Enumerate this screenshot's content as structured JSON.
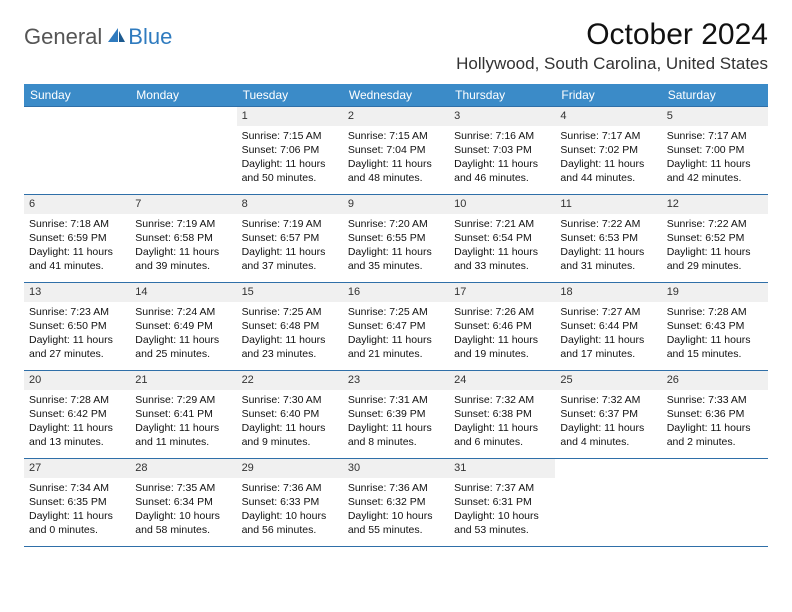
{
  "brand": {
    "general": "General",
    "blue": "Blue"
  },
  "title": "October 2024",
  "location": "Hollywood, South Carolina, United States",
  "colors": {
    "header_bg": "#3b8bc8",
    "header_text": "#ffffff",
    "border": "#2f6fa8",
    "daynum_bg": "#f0f0f0",
    "brand_blue": "#2f7bbf"
  },
  "weekdays": [
    "Sunday",
    "Monday",
    "Tuesday",
    "Wednesday",
    "Thursday",
    "Friday",
    "Saturday"
  ],
  "weeks": [
    [
      null,
      null,
      {
        "n": "1",
        "sunrise": "7:15 AM",
        "sunset": "7:06 PM",
        "daylight": "11 hours and 50 minutes."
      },
      {
        "n": "2",
        "sunrise": "7:15 AM",
        "sunset": "7:04 PM",
        "daylight": "11 hours and 48 minutes."
      },
      {
        "n": "3",
        "sunrise": "7:16 AM",
        "sunset": "7:03 PM",
        "daylight": "11 hours and 46 minutes."
      },
      {
        "n": "4",
        "sunrise": "7:17 AM",
        "sunset": "7:02 PM",
        "daylight": "11 hours and 44 minutes."
      },
      {
        "n": "5",
        "sunrise": "7:17 AM",
        "sunset": "7:00 PM",
        "daylight": "11 hours and 42 minutes."
      }
    ],
    [
      {
        "n": "6",
        "sunrise": "7:18 AM",
        "sunset": "6:59 PM",
        "daylight": "11 hours and 41 minutes."
      },
      {
        "n": "7",
        "sunrise": "7:19 AM",
        "sunset": "6:58 PM",
        "daylight": "11 hours and 39 minutes."
      },
      {
        "n": "8",
        "sunrise": "7:19 AM",
        "sunset": "6:57 PM",
        "daylight": "11 hours and 37 minutes."
      },
      {
        "n": "9",
        "sunrise": "7:20 AM",
        "sunset": "6:55 PM",
        "daylight": "11 hours and 35 minutes."
      },
      {
        "n": "10",
        "sunrise": "7:21 AM",
        "sunset": "6:54 PM",
        "daylight": "11 hours and 33 minutes."
      },
      {
        "n": "11",
        "sunrise": "7:22 AM",
        "sunset": "6:53 PM",
        "daylight": "11 hours and 31 minutes."
      },
      {
        "n": "12",
        "sunrise": "7:22 AM",
        "sunset": "6:52 PM",
        "daylight": "11 hours and 29 minutes."
      }
    ],
    [
      {
        "n": "13",
        "sunrise": "7:23 AM",
        "sunset": "6:50 PM",
        "daylight": "11 hours and 27 minutes."
      },
      {
        "n": "14",
        "sunrise": "7:24 AM",
        "sunset": "6:49 PM",
        "daylight": "11 hours and 25 minutes."
      },
      {
        "n": "15",
        "sunrise": "7:25 AM",
        "sunset": "6:48 PM",
        "daylight": "11 hours and 23 minutes."
      },
      {
        "n": "16",
        "sunrise": "7:25 AM",
        "sunset": "6:47 PM",
        "daylight": "11 hours and 21 minutes."
      },
      {
        "n": "17",
        "sunrise": "7:26 AM",
        "sunset": "6:46 PM",
        "daylight": "11 hours and 19 minutes."
      },
      {
        "n": "18",
        "sunrise": "7:27 AM",
        "sunset": "6:44 PM",
        "daylight": "11 hours and 17 minutes."
      },
      {
        "n": "19",
        "sunrise": "7:28 AM",
        "sunset": "6:43 PM",
        "daylight": "11 hours and 15 minutes."
      }
    ],
    [
      {
        "n": "20",
        "sunrise": "7:28 AM",
        "sunset": "6:42 PM",
        "daylight": "11 hours and 13 minutes."
      },
      {
        "n": "21",
        "sunrise": "7:29 AM",
        "sunset": "6:41 PM",
        "daylight": "11 hours and 11 minutes."
      },
      {
        "n": "22",
        "sunrise": "7:30 AM",
        "sunset": "6:40 PM",
        "daylight": "11 hours and 9 minutes."
      },
      {
        "n": "23",
        "sunrise": "7:31 AM",
        "sunset": "6:39 PM",
        "daylight": "11 hours and 8 minutes."
      },
      {
        "n": "24",
        "sunrise": "7:32 AM",
        "sunset": "6:38 PM",
        "daylight": "11 hours and 6 minutes."
      },
      {
        "n": "25",
        "sunrise": "7:32 AM",
        "sunset": "6:37 PM",
        "daylight": "11 hours and 4 minutes."
      },
      {
        "n": "26",
        "sunrise": "7:33 AM",
        "sunset": "6:36 PM",
        "daylight": "11 hours and 2 minutes."
      }
    ],
    [
      {
        "n": "27",
        "sunrise": "7:34 AM",
        "sunset": "6:35 PM",
        "daylight": "11 hours and 0 minutes."
      },
      {
        "n": "28",
        "sunrise": "7:35 AM",
        "sunset": "6:34 PM",
        "daylight": "10 hours and 58 minutes."
      },
      {
        "n": "29",
        "sunrise": "7:36 AM",
        "sunset": "6:33 PM",
        "daylight": "10 hours and 56 minutes."
      },
      {
        "n": "30",
        "sunrise": "7:36 AM",
        "sunset": "6:32 PM",
        "daylight": "10 hours and 55 minutes."
      },
      {
        "n": "31",
        "sunrise": "7:37 AM",
        "sunset": "6:31 PM",
        "daylight": "10 hours and 53 minutes."
      },
      null,
      null
    ]
  ],
  "labels": {
    "sunrise": "Sunrise: ",
    "sunset": "Sunset: ",
    "daylight": "Daylight: "
  }
}
